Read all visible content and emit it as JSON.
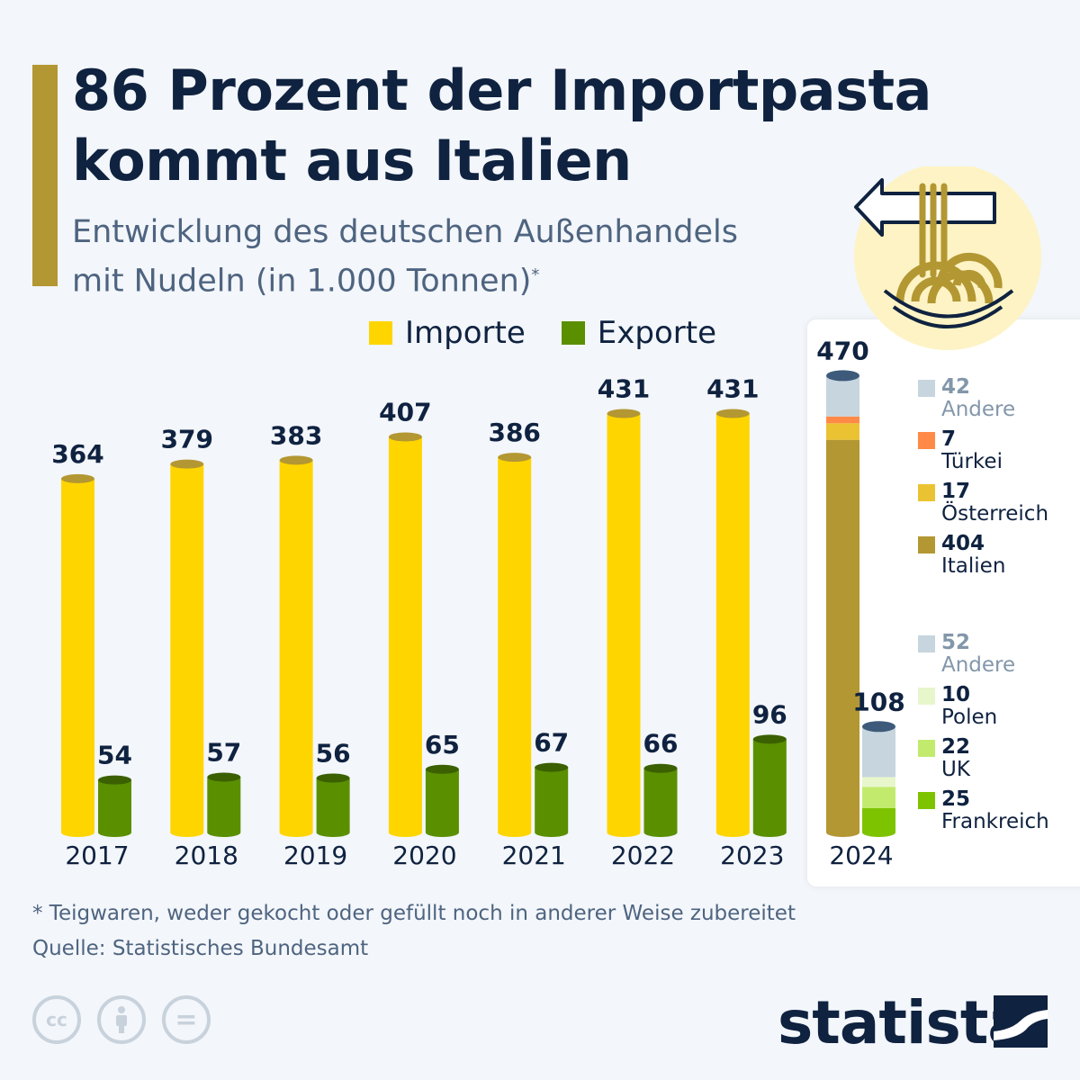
{
  "header": {
    "title_line1": "86 Prozent der Importpasta",
    "title_line2": "kommt aus Italien",
    "subtitle_line1": "Entwicklung des deutschen Außenhandels",
    "subtitle_line2": "mit Nudeln (in 1.000 Tonnen)",
    "subtitle_mark": "*"
  },
  "legend": {
    "imports": "Importe",
    "exports": "Exporte"
  },
  "colors": {
    "imports": "#ffd500",
    "exports": "#5a8f00",
    "cap_import": "#b39732",
    "cap_export": "#3b6000",
    "cap_2024": "#3d5a7a",
    "accent": "#b39732",
    "text": "#0f2240"
  },
  "chart_data": {
    "type": "bar",
    "categories": [
      "2017",
      "2018",
      "2019",
      "2020",
      "2021",
      "2022",
      "2023"
    ],
    "series": [
      {
        "name": "Importe",
        "values": [
          364,
          379,
          383,
          407,
          386,
          431,
          431
        ]
      },
      {
        "name": "Exporte",
        "values": [
          54,
          57,
          56,
          65,
          67,
          66,
          96
        ]
      }
    ],
    "breakdown_2024": {
      "year": "2024",
      "imports": {
        "total": 470,
        "segments": [
          {
            "name": "Italien",
            "value": 404,
            "color": "#b39732"
          },
          {
            "name": "Österreich",
            "value": 17,
            "color": "#ebc232"
          },
          {
            "name": "Türkei",
            "value": 7,
            "color": "#ff8a47"
          },
          {
            "name": "Andere",
            "value": 42,
            "color": "#c7d5de"
          }
        ]
      },
      "exports": {
        "total": 108,
        "segments": [
          {
            "name": "Frankreich",
            "value": 25,
            "color": "#7ec300"
          },
          {
            "name": "UK",
            "value": 22,
            "color": "#c2eb6e"
          },
          {
            "name": "Polen",
            "value": 10,
            "color": "#e8f6cc"
          },
          {
            "name": "Andere",
            "value": 52,
            "color": "#c7d5de"
          }
        ]
      }
    }
  },
  "footer": {
    "note": "* Teigwaren, weder gekocht oder gefüllt noch in anderer Weise zubereitet",
    "source": "Quelle: Statistisches Bundesamt",
    "license_icons": [
      "cc-icon",
      "attribution-icon",
      "no-derivatives-icon"
    ],
    "cc_text": "cc",
    "nd_text": "="
  },
  "brand": {
    "logo": "statista"
  }
}
